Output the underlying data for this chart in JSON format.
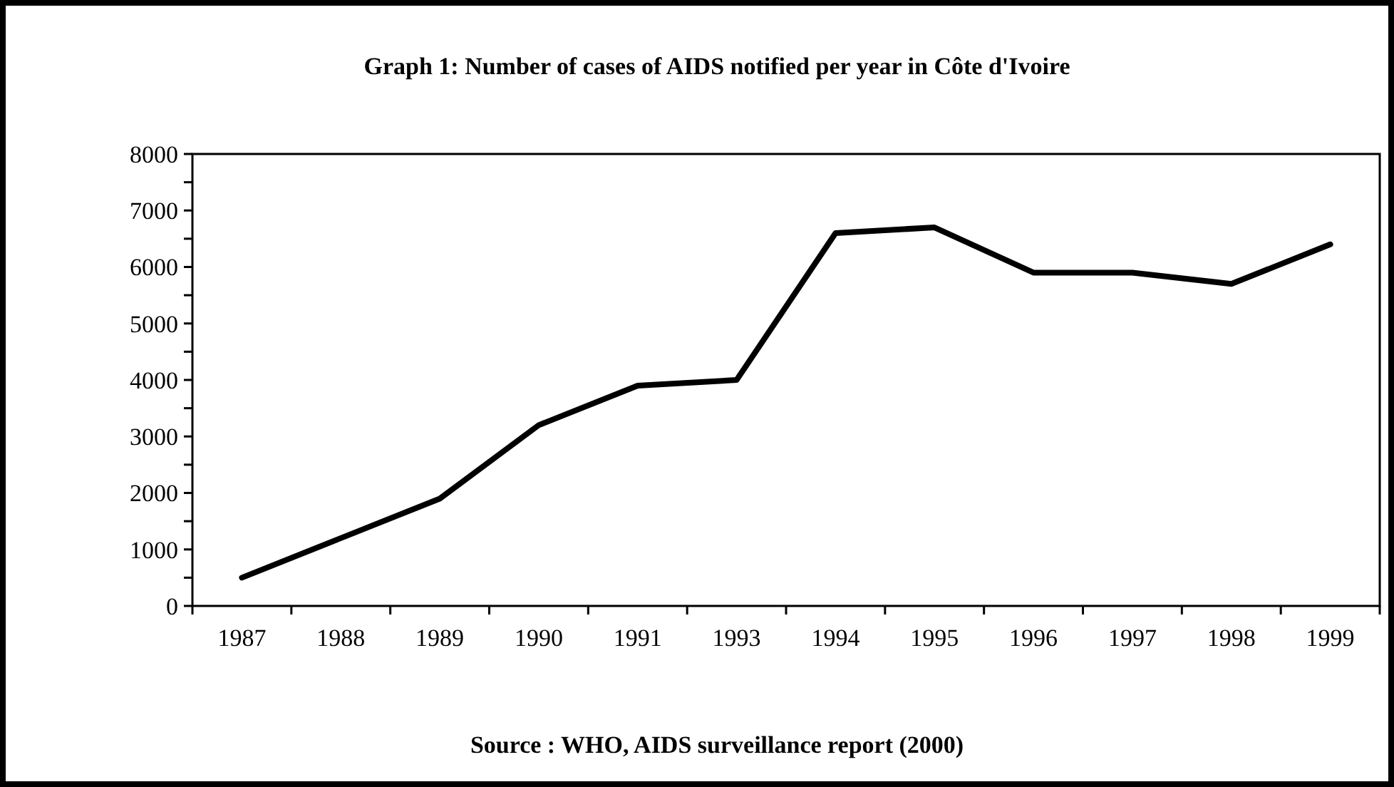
{
  "chart_data": {
    "type": "line",
    "title": "Graph 1: Number of cases of AIDS notified per year in Côte d'Ivoire",
    "categories": [
      "1987",
      "1988",
      "1989",
      "1990",
      "1991",
      "1993",
      "1994",
      "1995",
      "1996",
      "1997",
      "1998",
      "1999"
    ],
    "series": [
      {
        "color": "#000000",
        "values": [
          500,
          1200,
          1900,
          3200,
          3900,
          4000,
          6600,
          6700,
          5900,
          5900,
          5700,
          6400
        ]
      }
    ],
    "ylim": [
      0,
      8000
    ],
    "yticks": [
      0,
      {
        "value": 500,
        "label": null
      },
      1000,
      {
        "value": 1500,
        "label": null
      },
      2000,
      {
        "value": 2500,
        "label": null
      },
      3000,
      {
        "value": 3500,
        "label": null
      },
      4000,
      {
        "value": 4500,
        "label": null
      },
      5000,
      {
        "value": 5500,
        "label": null
      },
      6000,
      {
        "value": 6500,
        "label": null
      },
      7000,
      {
        "value": 7500,
        "label": null
      },
      8000
    ],
    "annotations": [
      "Source : WHO, AIDS surveillance report (2000)"
    ],
    "grid": false,
    "marker": "none",
    "line_style": "solid"
  }
}
